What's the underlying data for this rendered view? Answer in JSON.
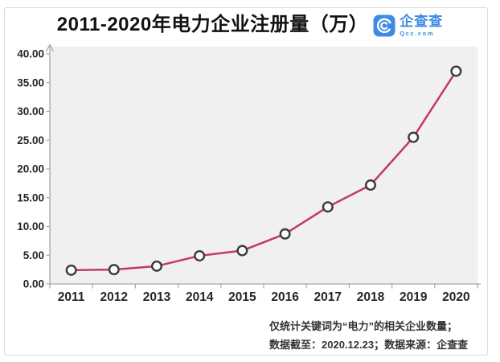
{
  "header": {
    "title": "2011-2020年电力企业注册量（万）",
    "logo": {
      "icon": "qichacha-logo-icon",
      "brand": "企查查",
      "domain": "Qcc.com"
    }
  },
  "chart_data": {
    "type": "line",
    "title": "2011-2020年电力企业注册量（万）",
    "categories": [
      "2011",
      "2012",
      "2013",
      "2014",
      "2015",
      "2016",
      "2017",
      "2018",
      "2019",
      "2020"
    ],
    "values": [
      2.4,
      2.5,
      3.1,
      4.9,
      5.8,
      8.7,
      13.4,
      17.2,
      25.5,
      37.0
    ],
    "xlabel": "",
    "ylabel": "",
    "ylim": [
      0,
      40
    ],
    "ytick_step": 5,
    "ytick_labels": [
      "0.00",
      "5.00",
      "10.00",
      "15.00",
      "20.00",
      "25.00",
      "30.00",
      "35.00",
      "40.00"
    ],
    "grid": false,
    "legend": false,
    "marker_shape": "open-circle"
  },
  "footer": {
    "note1": "仅统计关键词为“电力”的相关企业数量；",
    "note2": "数据截至：2020.12.23；数据来源：企查查"
  },
  "style": {
    "line_color": "#c23a60",
    "marker_fill": "#fcfbfc",
    "marker_stroke": "#3a3a3a",
    "plot_bg": "#f1f0f1",
    "axis_color": "#a8a8a8",
    "axis_label_color": "#262626",
    "title_color": "#111111",
    "note_color": "#333333",
    "brand_blue": "#3d8be4",
    "card_border": "#dcdcdc"
  }
}
